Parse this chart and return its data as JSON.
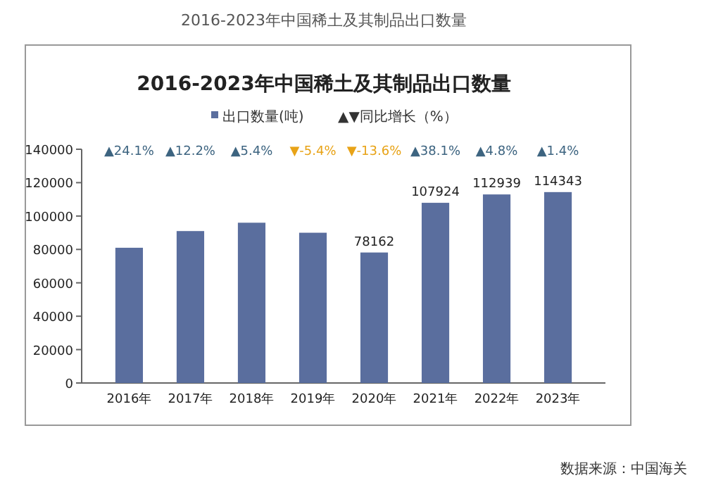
{
  "chart_data": {
    "type": "bar",
    "title": "2016-2023年中国稀土及其制品出口数量",
    "categories": [
      "2016年",
      "2017年",
      "2018年",
      "2019年",
      "2020年",
      "2021年",
      "2022年",
      "2023年"
    ],
    "series": [
      {
        "name": "出口数量(吨)",
        "color": "#5a6e9e",
        "values": [
          81000,
          91000,
          96000,
          90000,
          78162,
          107924,
          112939,
          114343
        ],
        "value_labels": [
          null,
          null,
          null,
          null,
          "78162",
          "107924",
          "112939",
          "114343"
        ]
      }
    ],
    "ylim": [
      0,
      140000
    ],
    "yticks": [
      0,
      20000,
      40000,
      60000,
      80000,
      100000,
      120000,
      140000
    ],
    "legend": "top",
    "annotations": [
      "2016-2023年中国稀土及其制品出口数量",
      "▲▼同比增长（%）",
      "数据来源：中国海关",
      "▲24.1%",
      "▲12.2%",
      "▲5.4%",
      "▼-5.4%",
      "▼-13.6%",
      "▲38.1%",
      "▲4.8%",
      "▲1.4%"
    ]
  }
}
